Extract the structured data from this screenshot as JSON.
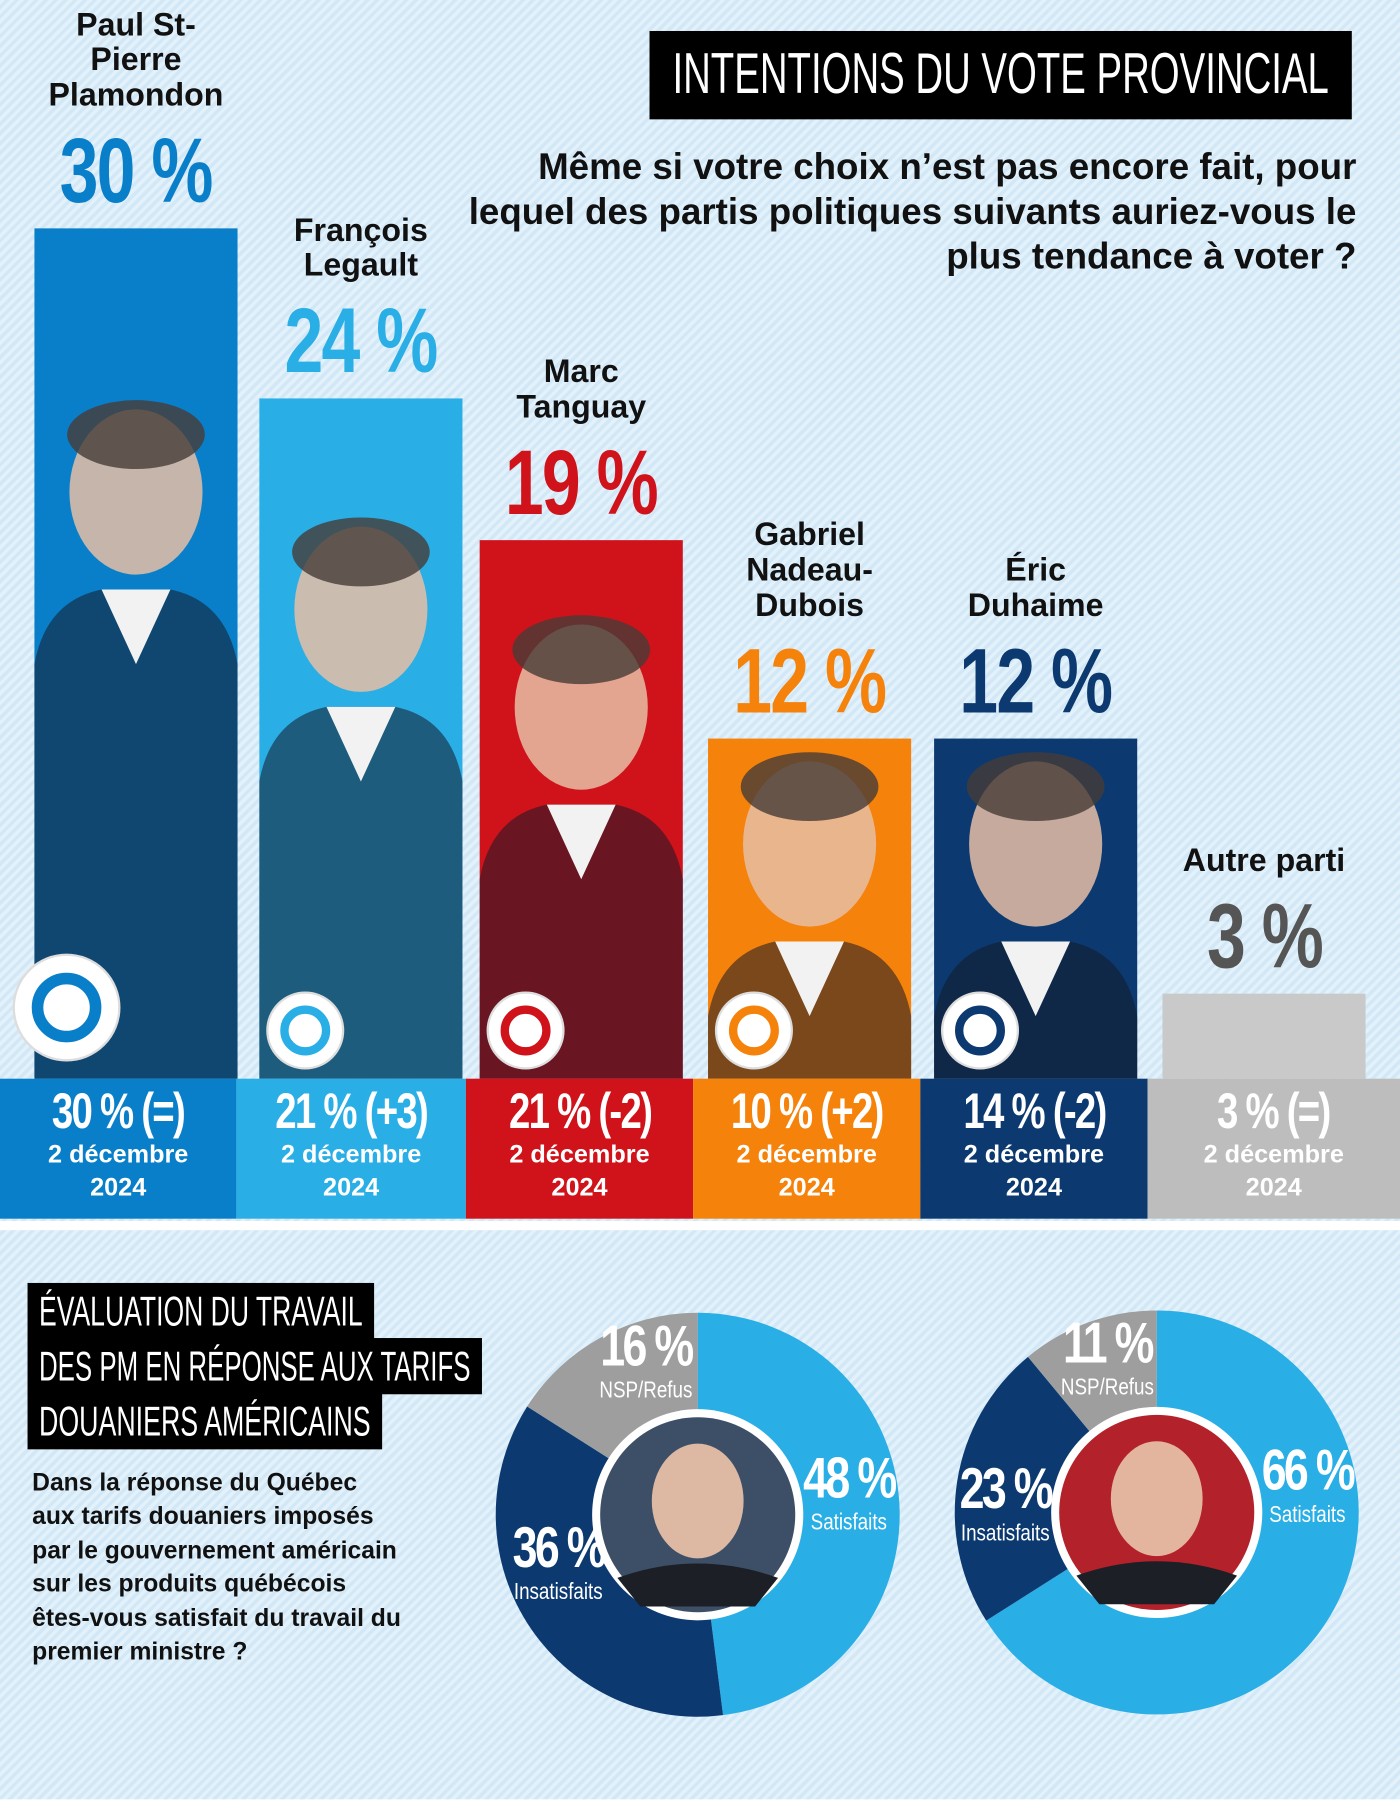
{
  "chart_data": [
    {
      "type": "bar",
      "title": "INTENTIONS DU VOTE PROVINCIAL",
      "subtitle": "Même si votre choix n’est pas encore fait, pour lequel des partis politiques suivants auriez-vous le plus tendance à voter ?",
      "categories": [
        "Paul St-Pierre Plamondon",
        "François Legault",
        "Marc Tanguay",
        "Gabriel Nadeau-Dubois",
        "Éric Duhaime",
        "Autre parti"
      ],
      "values": [
        30,
        24,
        19,
        12,
        12,
        3
      ],
      "value_labels": [
        "30 %",
        "24 %",
        "19 %",
        "12 %",
        "12 %",
        "3 %"
      ],
      "colors": [
        "#0a7fc9",
        "#2aaee6",
        "#d0121b",
        "#f5820a",
        "#0c3a70",
        "#c9c9c9"
      ],
      "value_label_colors": [
        "#0a7fc9",
        "#2aaee6",
        "#d0121b",
        "#f5820a",
        "#0c3a70",
        "#555555"
      ],
      "previous_labels": [
        "30 % (=)",
        "21 % (+3)",
        "21 % (-2)",
        "10 % (+2)",
        "14 % (-2)",
        "3 % (=)"
      ],
      "previous_date": "2 décembre 2024"
    },
    {
      "type": "donut",
      "categories": [
        "Satisfaits",
        "Insatisfaits",
        "NSP/Refus"
      ],
      "values": [
        48,
        36,
        16
      ],
      "value_labels": [
        "48 %",
        "36 %",
        "16 %"
      ],
      "colors": [
        "#2aaee6",
        "#0c3a70",
        "#9e9e9e"
      ]
    },
    {
      "type": "donut",
      "categories": [
        "Satisfaits",
        "Insatisfaits",
        "NSP/Refus"
      ],
      "values": [
        66,
        23,
        11
      ],
      "value_labels": [
        "66 %",
        "23 %",
        "11 %"
      ],
      "colors": [
        "#2aaee6",
        "#0c3a70",
        "#9e9e9e"
      ]
    }
  ],
  "section": {
    "title_lines": [
      "ÉVALUATION DU TRAVAIL",
      "DES PM EN RÉPONSE AUX TARIFS",
      "DOUANIERS AMÉRICAINS"
    ],
    "question": "Dans la réponse du Québec aux tarifs douaniers imposés par le gouvernement américain sur les produits québécois êtes-vous satisfait du travail du premier ministre ?"
  }
}
